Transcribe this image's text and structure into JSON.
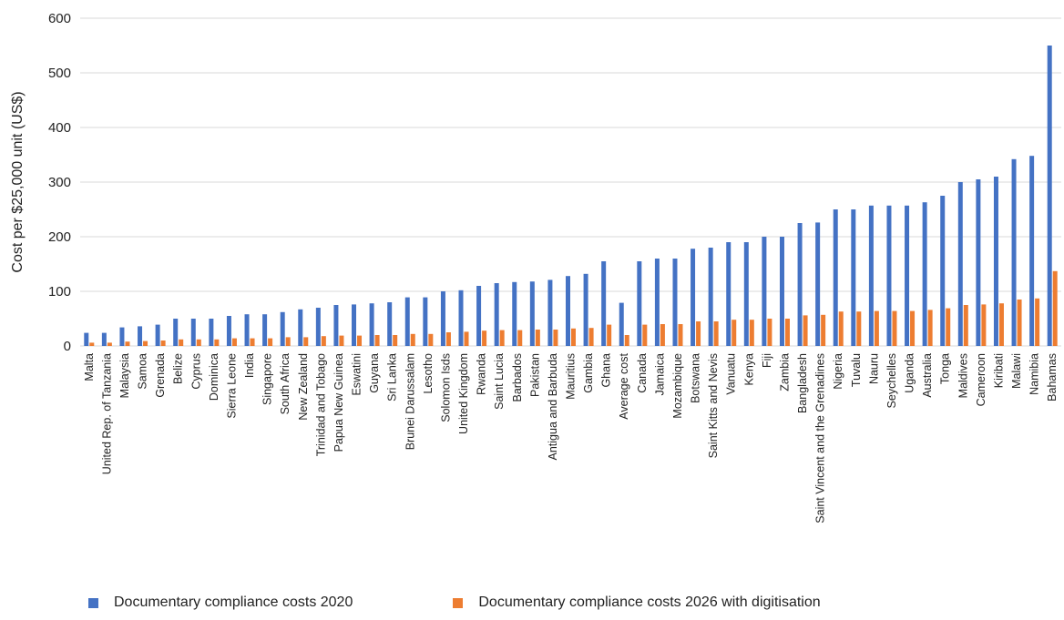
{
  "colors": {
    "series_2020": "#4472C4",
    "series_2026": "#ED7D31",
    "grid": "#D9D9D9"
  },
  "chart_data": {
    "type": "bar",
    "title": "",
    "xlabel": "",
    "ylabel": "Cost per $25,000 unit (US$)",
    "ylim": [
      0,
      600
    ],
    "yticks": [
      0,
      100,
      200,
      300,
      400,
      500,
      600
    ],
    "grid": true,
    "legend_position": "bottom",
    "categories": [
      "Malta",
      "United Rep. of Tanzania",
      "Malaysia",
      "Samoa",
      "Grenada",
      "Belize",
      "Cyprus",
      "Dominica",
      "Sierra Leone",
      "India",
      "Singapore",
      "South Africa",
      "New Zealand",
      "Trinidad and Tobago",
      "Papua New Guinea",
      "Eswatini",
      "Guyana",
      "Sri Lanka",
      "Brunei Darussalam",
      "Lesotho",
      "Solomon Isds",
      "United Kingdom",
      "Rwanda",
      "Saint Lucia",
      "Barbados",
      "Pakistan",
      "Antigua and Barbuda",
      "Mauritius",
      "Gambia",
      "Ghana",
      "Average cost",
      "Canada",
      "Jamaica",
      "Mozambique",
      "Botswana",
      "Saint Kitts and Nevis",
      "Vanuatu",
      "Kenya",
      "Fiji",
      "Zambia",
      "Bangladesh",
      "Saint Vincent and the Grenadines",
      "Nigeria",
      "Tuvalu",
      "Nauru",
      "Seychelles",
      "Uganda",
      "Australia",
      "Tonga",
      "Maldives",
      "Cameroon",
      "Kiribati",
      "Malawi",
      "Namibia",
      "Bahamas"
    ],
    "series": [
      {
        "name": "Documentary compliance costs 2020",
        "values": [
          24,
          24,
          34,
          36,
          39,
          50,
          50,
          50,
          55,
          58,
          58,
          62,
          67,
          70,
          75,
          76,
          78,
          80,
          89,
          89,
          100,
          102,
          110,
          115,
          117,
          118,
          121,
          128,
          132,
          155,
          79,
          155,
          160,
          160,
          178,
          180,
          190,
          190,
          200,
          200,
          225,
          226,
          250,
          250,
          257,
          257,
          257,
          263,
          275,
          300,
          305,
          310,
          342,
          348,
          550
        ]
      },
      {
        "name": "Documentary compliance costs 2026 with digitisation",
        "values": [
          6,
          6,
          8,
          9,
          10,
          12,
          12,
          12,
          14,
          14,
          14,
          16,
          16,
          18,
          19,
          19,
          20,
          20,
          22,
          22,
          25,
          26,
          28,
          29,
          29,
          30,
          30,
          32,
          33,
          39,
          20,
          39,
          40,
          40,
          45,
          45,
          48,
          48,
          50,
          50,
          56,
          57,
          63,
          63,
          64,
          64,
          64,
          66,
          69,
          75,
          76,
          78,
          85,
          87,
          137
        ]
      }
    ]
  }
}
